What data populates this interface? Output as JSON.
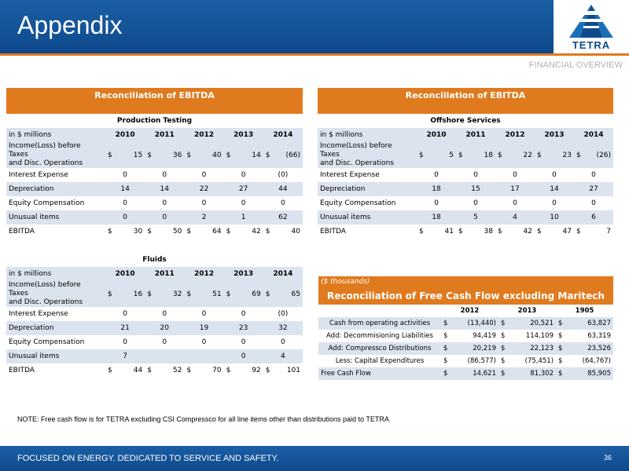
{
  "header": {
    "title": "Appendix",
    "logo_text": "TETRA",
    "section": "FINANCIAL OVERVIEW"
  },
  "tables": {
    "production_testing": {
      "title": "Reconciliation of EBITDA",
      "segment": "Production Testing",
      "unit_label": "in $ millions",
      "years": [
        "2010",
        "2011",
        "2012",
        "2013",
        "2014"
      ],
      "rows": [
        {
          "label_lines": [
            "Income(Loss) before",
            "Taxes",
            "and Disc. Operations"
          ],
          "dollar": true,
          "values": [
            "15",
            "36",
            "40",
            "14",
            "(66)"
          ]
        },
        {
          "label_lines": [
            "Interest Expense"
          ],
          "dollar": false,
          "values": [
            "0",
            "0",
            "0",
            "0",
            "(0)"
          ]
        },
        {
          "label_lines": [
            "Depreciation"
          ],
          "dollar": false,
          "values": [
            "14",
            "14",
            "22",
            "27",
            "44"
          ]
        },
        {
          "label_lines": [
            "Equity Compensation"
          ],
          "dollar": false,
          "values": [
            "0",
            "0",
            "0",
            "0",
            "0"
          ]
        },
        {
          "label_lines": [
            "Unusual items"
          ],
          "dollar": false,
          "values": [
            "0",
            "0",
            "2",
            "1",
            "62"
          ]
        },
        {
          "label_lines": [
            "EBITDA"
          ],
          "dollar": true,
          "values": [
            "30",
            "50",
            "64",
            "42",
            "40"
          ]
        }
      ]
    },
    "offshore_services": {
      "title": "Reconciliation of EBITDA",
      "segment": "Offshore Services",
      "unit_label": "in $ millions",
      "years": [
        "2010",
        "2011",
        "2012",
        "2013",
        "2014"
      ],
      "rows": [
        {
          "label_lines": [
            "Income(Loss) before",
            "Taxes",
            "and Disc. Operations"
          ],
          "dollar": true,
          "values": [
            "5",
            "18",
            "22",
            "23",
            "(26)"
          ]
        },
        {
          "label_lines": [
            "Interest Expense"
          ],
          "dollar": false,
          "values": [
            "0",
            "0",
            "0",
            "0",
            "0"
          ]
        },
        {
          "label_lines": [
            "Depreciation"
          ],
          "dollar": false,
          "values": [
            "18",
            "15",
            "17",
            "14",
            "27"
          ]
        },
        {
          "label_lines": [
            "Equity Compensation"
          ],
          "dollar": false,
          "values": [
            "0",
            "0",
            "0",
            "0",
            "0"
          ]
        },
        {
          "label_lines": [
            "Unusual items"
          ],
          "dollar": false,
          "values": [
            "18",
            "5",
            "4",
            "10",
            "6"
          ]
        },
        {
          "label_lines": [
            "EBITDA"
          ],
          "dollar": true,
          "values": [
            "41",
            "38",
            "42",
            "47",
            "7"
          ]
        }
      ]
    },
    "fluids": {
      "segment": "Fluids",
      "unit_label": "in $ millions",
      "years": [
        "2010",
        "2011",
        "2012",
        "2013",
        "2014"
      ],
      "rows": [
        {
          "label_lines": [
            "Income(Loss) before",
            "Taxes",
            "and Disc. Operations"
          ],
          "dollar": true,
          "values": [
            "16",
            "32",
            "51",
            "69",
            "65"
          ]
        },
        {
          "label_lines": [
            "Interest Expense"
          ],
          "dollar": false,
          "values": [
            "0",
            "0",
            "0",
            "0",
            "(0)"
          ]
        },
        {
          "label_lines": [
            "Depreciation"
          ],
          "dollar": false,
          "values": [
            "21",
            "20",
            "19",
            "23",
            "32"
          ]
        },
        {
          "label_lines": [
            "Equity Compensation"
          ],
          "dollar": false,
          "values": [
            "0",
            "0",
            "0",
            "0",
            "0"
          ]
        },
        {
          "label_lines": [
            "Unusual items"
          ],
          "dollar": false,
          "values": [
            "7",
            "",
            "",
            "0",
            "4"
          ]
        },
        {
          "label_lines": [
            "EBITDA"
          ],
          "dollar": true,
          "values": [
            "44",
            "52",
            "70",
            "92",
            "101"
          ]
        }
      ]
    },
    "free_cash_flow": {
      "unit_note": "($ thousands)",
      "title": "Reconciliation of Free Cash Flow excluding Maritech",
      "years": [
        "2012",
        "2013",
        "1905"
      ],
      "rows": [
        {
          "label": "Cash from operating activities",
          "values": [
            "(13,440)",
            "20,521",
            "63,827"
          ]
        },
        {
          "label": "Add: Decommisioning Liabilities",
          "values": [
            "94,419",
            "114,109",
            "63,319"
          ]
        },
        {
          "label": "Add: Compressco Distributions",
          "values": [
            "20,219",
            "22,123",
            "23,526"
          ]
        },
        {
          "label": "Less: Capital Expenditures",
          "values": [
            "(86,577)",
            "(75,451)",
            "(64,767)"
          ]
        },
        {
          "label": "Free Cash Flow",
          "values": [
            "14,621",
            "81,302",
            "85,905"
          ]
        }
      ]
    }
  },
  "note": "NOTE:   Free cash flow is for TETRA excluding CSI Compressco for all line items other than distributions paid to TETRA",
  "footer": {
    "tagline": "FOCUSED ON ENERGY. DEDICATED TO SERVICE AND SAFETY.",
    "page_number": "36"
  },
  "colors": {
    "brand_blue": "#0e4a8c",
    "accent_orange": "#e07a1e",
    "row_tint": "#dbe3ef"
  }
}
